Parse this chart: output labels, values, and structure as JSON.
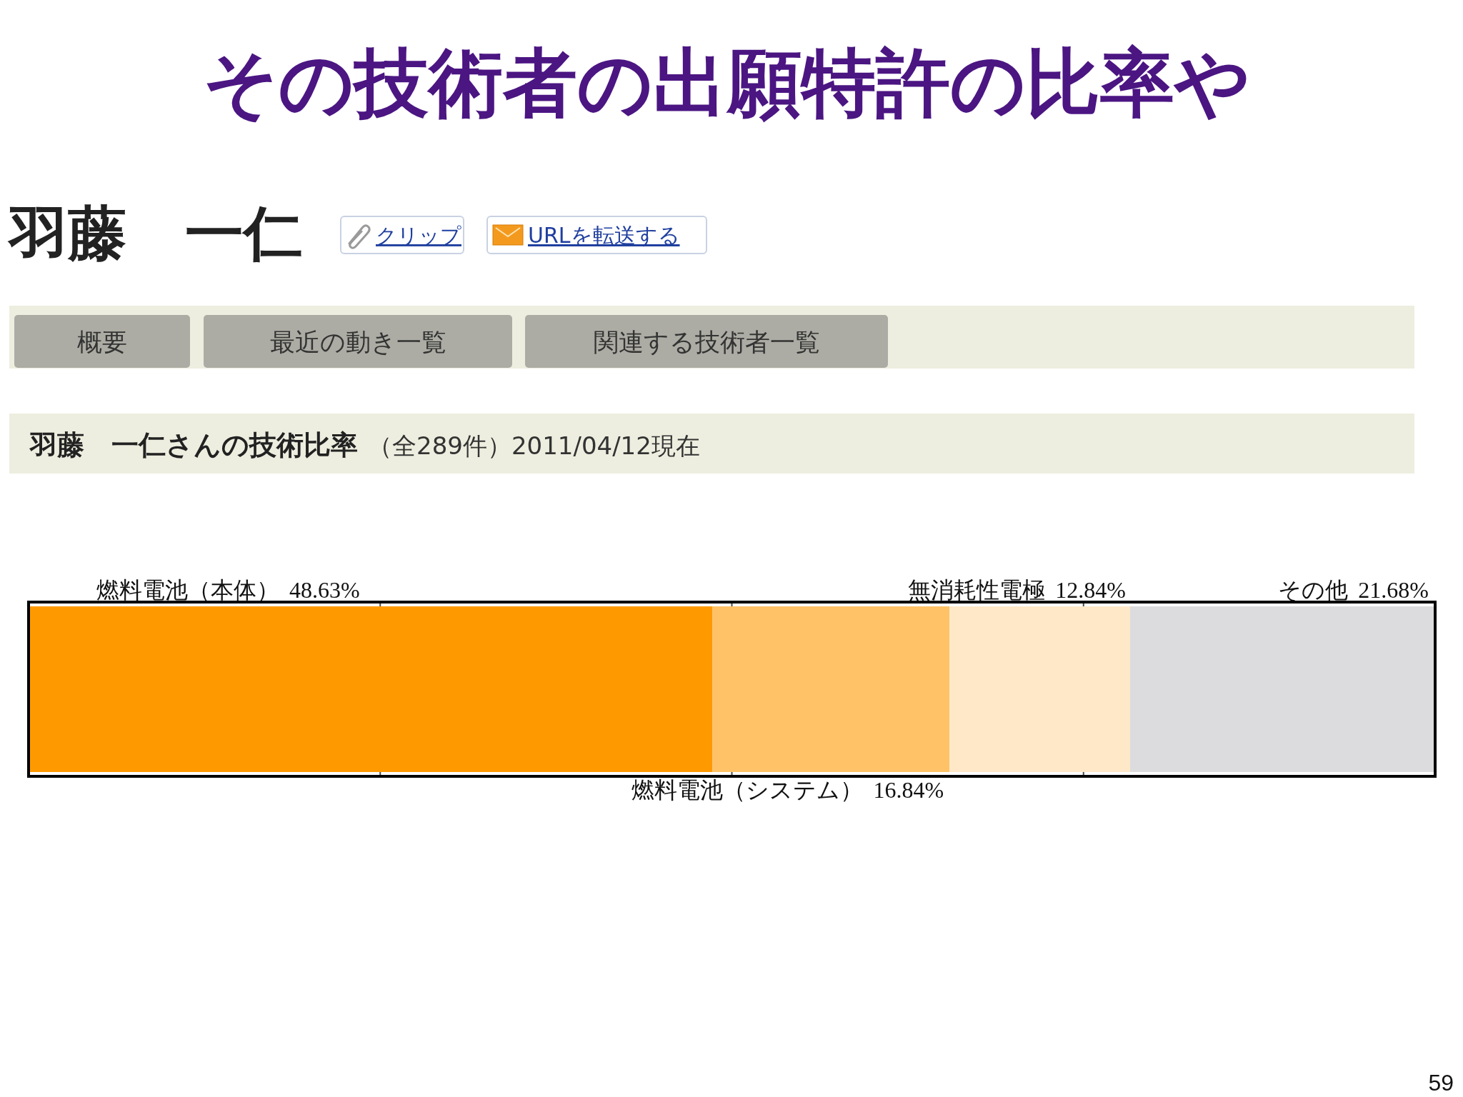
{
  "chart_data": {
    "type": "bar",
    "orientation": "horizontal",
    "stacked": true,
    "title": "その技術者の出願特許の比率や",
    "subtitle": "羽藤　一仁さんの技術比率",
    "categories": [
      null
    ],
    "series": [
      {
        "name": "燃料電池（本体）",
        "color": "#ff9900",
        "values": [
          48.63
        ],
        "value_labels": [
          "48.63%"
        ]
      },
      {
        "name": "燃料電池（システム）",
        "color": "#ffc266",
        "values": [
          16.84
        ],
        "value_labels": [
          "16.84%"
        ]
      },
      {
        "name": "無消耗性電極",
        "color": "#ffe8c8",
        "values": [
          12.84
        ],
        "value_labels": [
          "12.84%"
        ]
      },
      {
        "name": "その他",
        "color": "#dcdcde",
        "values": [
          21.68
        ],
        "value_labels": [
          "21.68%"
        ]
      }
    ],
    "xlim": [
      0,
      100
    ],
    "xticks": [
      {
        "value": 25,
        "label": null
      },
      {
        "value": 50,
        "label": null
      },
      {
        "value": 75,
        "label": null
      }
    ],
    "grid": "x",
    "tick_labels": false,
    "annotations": [
      "羽藤　一仁",
      "クリップ",
      "URLを転送する",
      "概要",
      "最近の動き一覧",
      "関連する技術者一覧",
      "（全289件）2011/04/12現在",
      "59"
    ]
  }
}
